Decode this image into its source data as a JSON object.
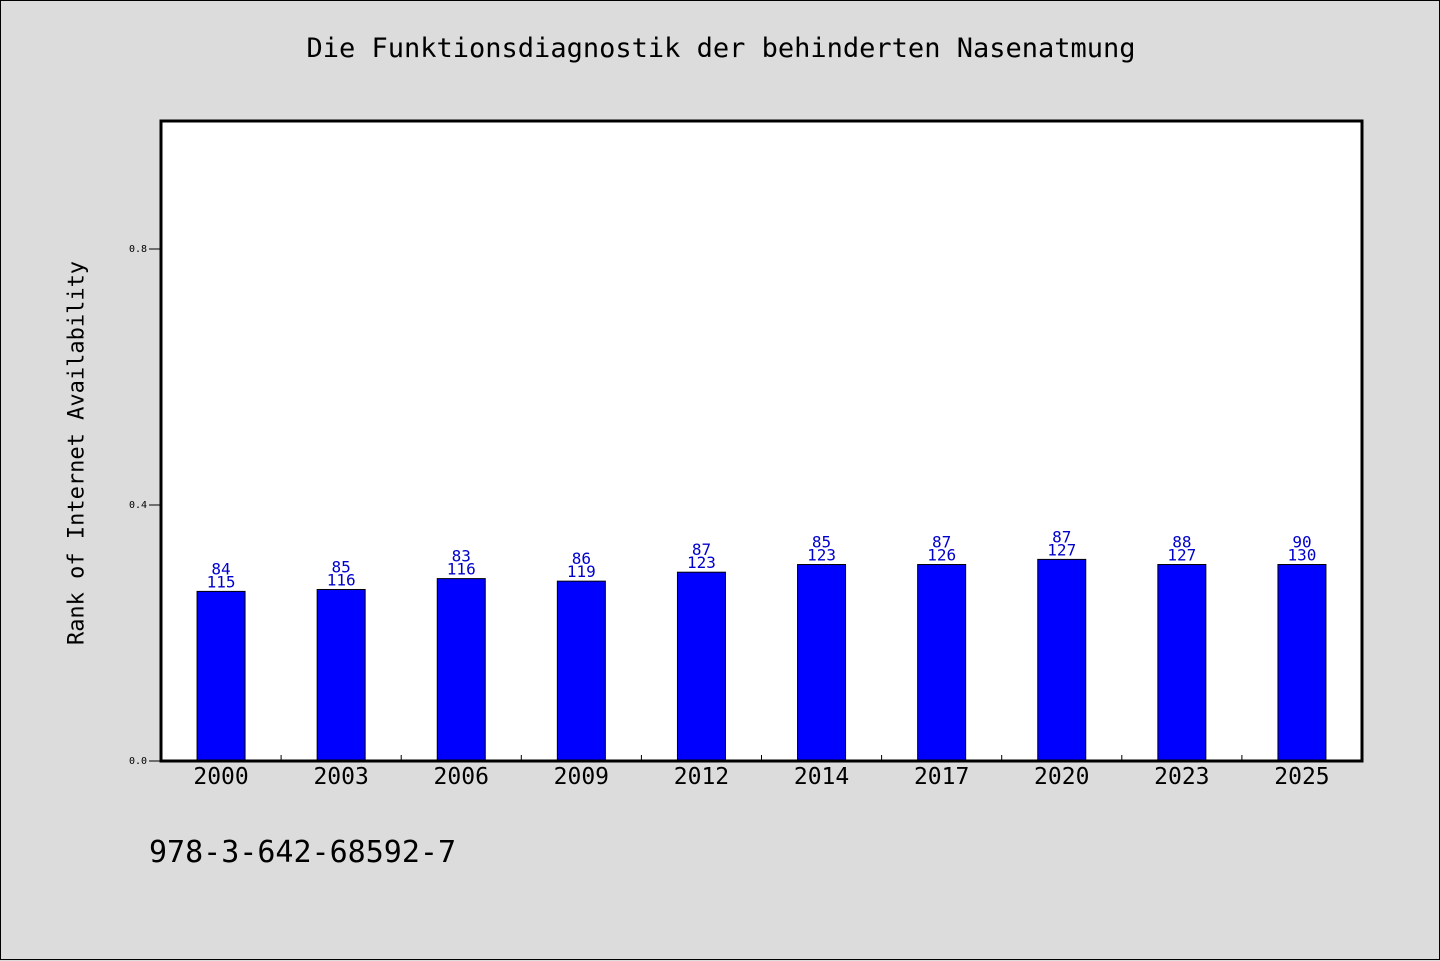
{
  "title": "Die Funktionsdiagnostik der behinderten Nasenatmung",
  "footer_text": "978-3-642-68592-7",
  "colors": {
    "bar": "#0000ff",
    "label": "#0000cc",
    "background": "#dcdcdc",
    "plot_background": "#ffffff"
  },
  "chart_data": {
    "type": "bar",
    "title": "Die Funktionsdiagnostik der behinderten Nasenatmung",
    "xlabel": "",
    "ylabel": "Rank of Internet Availability",
    "categories": [
      "2000",
      "2003",
      "2006",
      "2009",
      "2012",
      "2014",
      "2017",
      "2020",
      "2023",
      "2025"
    ],
    "values": [
      0.265,
      0.268,
      0.285,
      0.281,
      0.295,
      0.307,
      0.307,
      0.315,
      0.307,
      0.307
    ],
    "annotations_top": [
      "84",
      "85",
      "83",
      "86",
      "87",
      "85",
      "87",
      "87",
      "88",
      "90"
    ],
    "annotations_bottom": [
      "115",
      "116",
      "116",
      "119",
      "123",
      "123",
      "126",
      "127",
      "127",
      "130"
    ],
    "ylim": [
      0,
      1.0
    ],
    "yticks": [
      0.0,
      0.4,
      0.8
    ],
    "ytick_labels": [
      "0.0",
      "0.4",
      "0.8"
    ],
    "grid": false,
    "legend": "none"
  }
}
